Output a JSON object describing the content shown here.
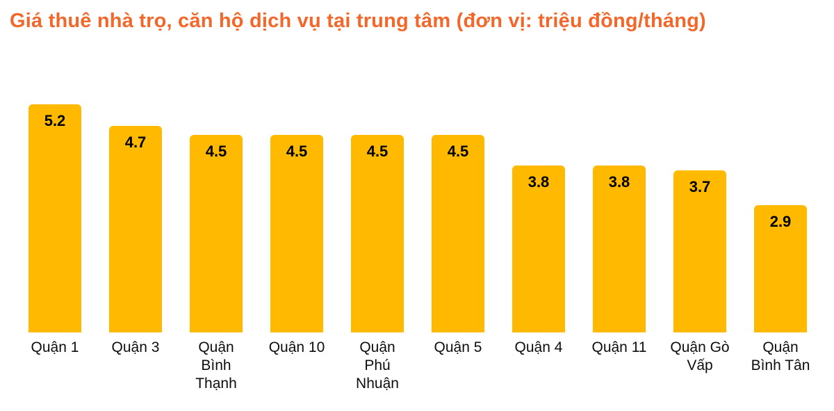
{
  "title": {
    "text": "Giá thuê nhà trọ, căn hộ dịch vụ tại trung tâm (đơn vị: triệu đồng/tháng)",
    "color": "#F2682B"
  },
  "chart_data": {
    "type": "bar",
    "title": "Giá thuê nhà trọ, căn hộ dịch vụ tại trung tâm (đơn vị: triệu đồng/tháng)",
    "categories": [
      "Quận 1",
      "Quận 3",
      "Quận Bình Thạnh",
      "Quận 10",
      "Quận Phú Nhuận",
      "Quận 5",
      "Quận 4",
      "Quận 11",
      "Quận Gò Vấp",
      "Quận Bình Tân"
    ],
    "category_label_lines": [
      [
        "Quận 1"
      ],
      [
        "Quận 3"
      ],
      [
        "Quận",
        "Bình",
        "Thạnh"
      ],
      [
        "Quận 10"
      ],
      [
        "Quận",
        "Phú",
        "Nhuận"
      ],
      [
        "Quận 5"
      ],
      [
        "Quận 4"
      ],
      [
        "Quận 11"
      ],
      [
        "Quận Gò",
        "Vấp"
      ],
      [
        "Quận",
        "Bình Tân"
      ]
    ],
    "values": [
      5.2,
      4.7,
      4.5,
      4.5,
      4.5,
      4.5,
      3.8,
      3.8,
      3.7,
      2.9
    ],
    "unit": "triệu đồng/tháng",
    "xlabel": "",
    "ylabel": "",
    "ylim": [
      0,
      5.4
    ],
    "grid": false,
    "legend": false,
    "data_labels": true,
    "bar_color": "#FFBA00",
    "value_label_color": "#000000",
    "category_label_color": "#0d0d0d"
  }
}
